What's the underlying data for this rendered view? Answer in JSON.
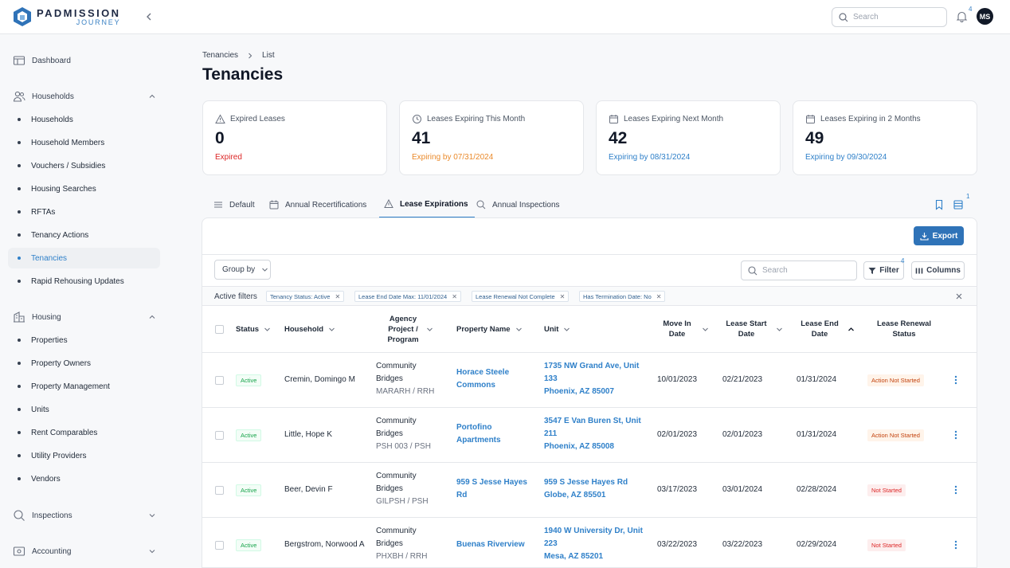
{
  "brand": {
    "name": "PADMISSION",
    "tagline": "JOURNEY"
  },
  "topbar": {
    "search_placeholder": "Search",
    "notifications_count": "4",
    "avatar_initials": "MS"
  },
  "sidebar": {
    "dashboard": "Dashboard",
    "households": {
      "label": "Households",
      "items": [
        "Households",
        "Household Members",
        "Vouchers / Subsidies",
        "Housing Searches",
        "RFTAs",
        "Tenancy Actions",
        "Tenancies",
        "Rapid Rehousing Updates"
      ],
      "active_index": 6
    },
    "housing": {
      "label": "Housing",
      "items": [
        "Properties",
        "Property Owners",
        "Property Management",
        "Units",
        "Rent Comparables",
        "Utility Providers",
        "Vendors"
      ]
    },
    "inspections": "Inspections",
    "accounting": "Accounting"
  },
  "breadcrumb": {
    "parent": "Tenancies",
    "current": "List"
  },
  "page_title": "Tenancies",
  "cards": [
    {
      "title": "Expired Leases",
      "value": "0",
      "sub": "Expired",
      "color": "#dc2626",
      "icon": "warning-icon"
    },
    {
      "title": "Leases Expiring This Month",
      "value": "41",
      "sub": "Expiring by 07/31/2024",
      "color": "#ea8a2b",
      "icon": "clock-icon"
    },
    {
      "title": "Leases Expiring Next Month",
      "value": "42",
      "sub": "Expiring by 08/31/2024",
      "color": "#2f80c9",
      "icon": "calendar-icon"
    },
    {
      "title": "Leases Expiring in 2 Months",
      "value": "49",
      "sub": "Expiring by 09/30/2024",
      "color": "#2f80c9",
      "icon": "calendar-icon"
    }
  ],
  "tabs": [
    "Default",
    "Annual Recertifications",
    "Lease Expirations",
    "Annual Inspections"
  ],
  "active_tab": "Lease Expirations",
  "views_count": "1",
  "toolbar": {
    "export": "Export",
    "group_by": "Group by",
    "search_placeholder": "Search",
    "filter": "Filter",
    "filter_count": "4",
    "columns": "Columns"
  },
  "active_filters": {
    "label": "Active filters",
    "chips": [
      "Tenancy Status: Active",
      "Lease End Date Max: 11/01/2024",
      "Lease Renewal Not Complete",
      "Has Termination Date: No"
    ]
  },
  "columns": {
    "status": "Status",
    "household": "Household",
    "agency_l1": "Agency",
    "agency_l2": "Project /",
    "agency_l3": "Program",
    "property": "Property Name",
    "unit": "Unit",
    "move_in_l1": "Move In",
    "move_in_l2": "Date",
    "lease_start_l1": "Lease Start",
    "lease_start_l2": "Date",
    "lease_end_l1": "Lease End",
    "lease_end_l2": "Date",
    "renewal_l1": "Lease Renewal",
    "renewal_l2": "Status"
  },
  "rows": [
    {
      "status": "Active",
      "household": "Cremin, Domingo M",
      "agency_l1": "Community",
      "agency_l2": "Bridges",
      "program": "MARARH / RRH",
      "property_l1": "Horace Steele",
      "property_l2": "Commons",
      "unit_l1": "1735 NW Grand Ave, Unit",
      "unit_l2": "133",
      "unit_l3": "Phoenix, AZ 85007",
      "move_in": "10/01/2023",
      "lease_start": "02/21/2023",
      "lease_end": "01/31/2024",
      "renewal": "Action Not Started"
    },
    {
      "status": "Active",
      "household": "Little, Hope K",
      "agency_l1": "Community",
      "agency_l2": "Bridges",
      "program": "PSH 003 / PSH",
      "property_l1": "Portofino",
      "property_l2": "Apartments",
      "unit_l1": "3547 E Van Buren St, Unit",
      "unit_l2": "211",
      "unit_l3": "Phoenix, AZ 85008",
      "move_in": "02/01/2023",
      "lease_start": "02/01/2023",
      "lease_end": "01/31/2024",
      "renewal": "Action Not Started"
    },
    {
      "status": "Active",
      "household": "Beer, Devin F",
      "agency_l1": "Community",
      "agency_l2": "Bridges",
      "program": "GILPSH / PSH",
      "property_l1": "959 S Jesse Hayes",
      "property_l2": "Rd",
      "unit_l1": "959 S Jesse Hayes Rd",
      "unit_l2": "Globe, AZ 85501",
      "unit_l3": "",
      "move_in": "03/17/2023",
      "lease_start": "03/01/2024",
      "lease_end": "02/28/2024",
      "renewal": "Not Started"
    },
    {
      "status": "Active",
      "household": "Bergstrom, Norwood A",
      "agency_l1": "Community",
      "agency_l2": "Bridges",
      "program": "PHXBH / RRH",
      "property_l1": "Buenas Riverview",
      "property_l2": "",
      "unit_l1": "1940 W University Dr, Unit",
      "unit_l2": "223",
      "unit_l3": "Mesa, AZ 85201",
      "move_in": "03/22/2023",
      "lease_start": "03/22/2023",
      "lease_end": "02/29/2024",
      "renewal": "Not Started"
    }
  ],
  "colors": {
    "accent": "#2f80c9",
    "active_green": "#16a34a",
    "renewal_orange": "#c2410c",
    "renewal_red": "#dc2626"
  }
}
